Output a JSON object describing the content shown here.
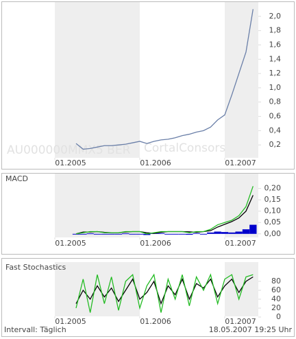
{
  "chart_data": [
    {
      "type": "line",
      "annotations": [
        "AU000000MMX5 BER",
        "CortalConsors"
      ],
      "xticks": [
        "01.2005",
        "01.2006",
        "01.2007"
      ],
      "ylim": [
        0,
        2.2
      ],
      "yticks": [
        {
          "value": 0.2,
          "label": "0,2"
        },
        {
          "value": 0.4,
          "label": "0,4"
        },
        {
          "value": 0.6,
          "label": "0,6"
        },
        {
          "value": 0.8,
          "label": "0,8"
        },
        {
          "value": 1.0,
          "label": "1,0"
        },
        {
          "value": 1.2,
          "label": "1,2"
        },
        {
          "value": 1.4,
          "label": "1,4"
        },
        {
          "value": 1.6,
          "label": "1,6"
        },
        {
          "value": 1.8,
          "label": "1,8"
        },
        {
          "value": 2.0,
          "label": "2,0"
        }
      ],
      "series": [
        {
          "color": "#6a7fa8",
          "values": [
            0.22,
            0.14,
            0.15,
            0.17,
            0.19,
            0.19,
            0.2,
            0.21,
            0.23,
            0.25,
            0.22,
            0.25,
            0.27,
            0.28,
            0.3,
            0.33,
            0.35,
            0.38,
            0.4,
            0.45,
            0.55,
            0.62,
            0.9,
            1.2,
            1.5,
            2.1
          ]
        }
      ]
    },
    {
      "type": "line",
      "title": "MACD",
      "xticks": [
        "01.2005",
        "01.2006",
        "01.2007"
      ],
      "ylim": [
        -0.02,
        0.22
      ],
      "yticks": [
        {
          "value": 0,
          "label": "0,00"
        },
        {
          "value": 0.05,
          "label": "0,05"
        },
        {
          "value": 0.1,
          "label": "0,10"
        },
        {
          "value": 0.15,
          "label": "0,15"
        },
        {
          "value": 0.2,
          "label": "0,20"
        }
      ],
      "series": [
        {
          "type": "bar",
          "color": "#0000cc",
          "values": [
            0,
            -0.003,
            0.002,
            0,
            -0.002,
            0,
            0,
            0.002,
            0,
            0,
            -0.005,
            0.003,
            0.003,
            0,
            0,
            0,
            -0.004,
            0.003,
            0,
            0.006,
            0.01,
            0.008,
            0.006,
            0.01,
            0.02,
            0.04
          ]
        },
        {
          "color": "#000000",
          "values": [
            0,
            0.008,
            0.008,
            0.01,
            0.007,
            0.005,
            0.005,
            0.008,
            0.01,
            0.01,
            0.005,
            0.002,
            0.007,
            0.01,
            0.01,
            0.01,
            0.009,
            0.007,
            0.01,
            0.014,
            0.03,
            0.042,
            0.054,
            0.07,
            0.1,
            0.17
          ]
        },
        {
          "color": "#22bb22",
          "values": [
            0,
            0.005,
            0.01,
            0.01,
            0.005,
            0.005,
            0.005,
            0.01,
            0.01,
            0.01,
            0,
            0.005,
            0.01,
            0.01,
            0.01,
            0.01,
            0.005,
            0.01,
            0.01,
            0.02,
            0.04,
            0.05,
            0.06,
            0.08,
            0.12,
            0.21
          ]
        }
      ]
    },
    {
      "type": "line",
      "title": "Fast Stochastics",
      "xticks": [
        "01.2005",
        "01.2006",
        "01.2007"
      ],
      "ylim": [
        0,
        100
      ],
      "yticks": [
        0,
        20,
        40,
        60,
        80
      ],
      "series": [
        {
          "color": "#000000",
          "values": [
            30,
            60,
            40,
            70,
            45,
            65,
            35,
            60,
            85,
            40,
            55,
            80,
            30,
            70,
            50,
            85,
            40,
            75,
            65,
            85,
            45,
            70,
            85,
            55,
            80,
            90
          ]
        },
        {
          "color": "#22bb22",
          "values": [
            20,
            85,
            10,
            95,
            30,
            90,
            15,
            80,
            95,
            20,
            70,
            95,
            10,
            85,
            40,
            95,
            25,
            90,
            60,
            95,
            30,
            85,
            95,
            40,
            90,
            95
          ]
        }
      ]
    }
  ],
  "footer": {
    "interval": "Intervall: Täglich",
    "timestamp": "18.05.2007  19:25 Uhr"
  }
}
